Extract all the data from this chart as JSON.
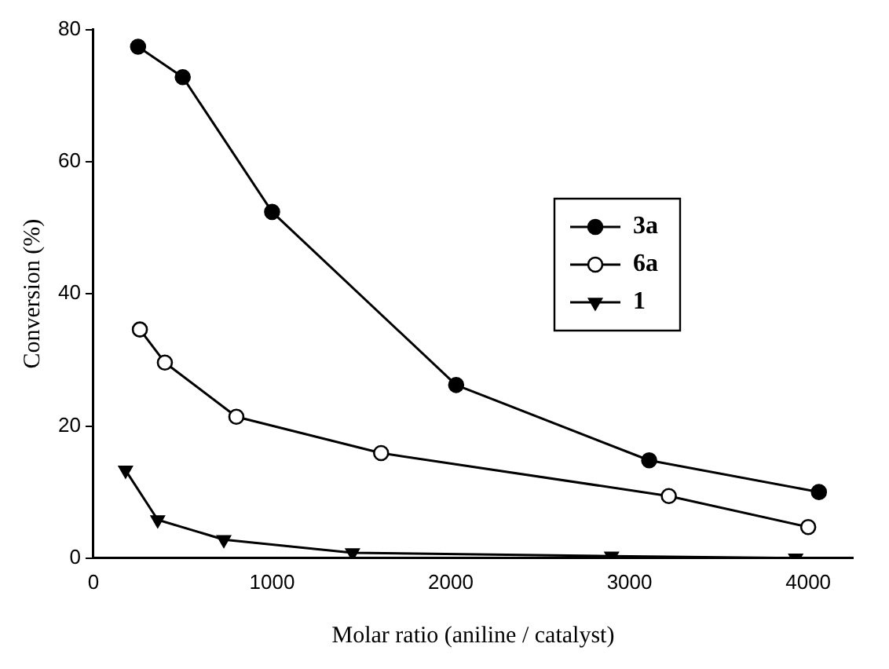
{
  "chart_data": {
    "type": "line",
    "xlabel": "Molar ratio (aniline / catalyst)",
    "ylabel": "Conversion (%)",
    "xlim": [
      0,
      4250
    ],
    "xticks": [
      0,
      1000,
      2000,
      3000,
      4000
    ],
    "ylim": [
      0,
      80
    ],
    "yticks": [
      0,
      20,
      40,
      60,
      80
    ],
    "grid": false,
    "legend": "right",
    "line_style": "solid",
    "series": [
      {
        "name": "3a",
        "color": "#000000",
        "marker": "circle",
        "x": [
          250,
          500,
          1000,
          2030,
          3110,
          4060
        ],
        "values": [
          77.4,
          72.8,
          52.4,
          26.2,
          14.8,
          10.0
        ]
      },
      {
        "name": "6a",
        "color": "#000000",
        "marker": "circle",
        "x": [
          260,
          400,
          800,
          1610,
          3220,
          4000
        ],
        "values": [
          34.6,
          29.6,
          21.4,
          15.9,
          9.4,
          4.7
        ]
      },
      {
        "name": "1",
        "color": "#000000",
        "marker": "triangle",
        "x": [
          180,
          360,
          730,
          1450,
          2900,
          3930
        ],
        "values": [
          13.3,
          5.8,
          2.8,
          0.8,
          0.3,
          0.0
        ]
      }
    ]
  }
}
